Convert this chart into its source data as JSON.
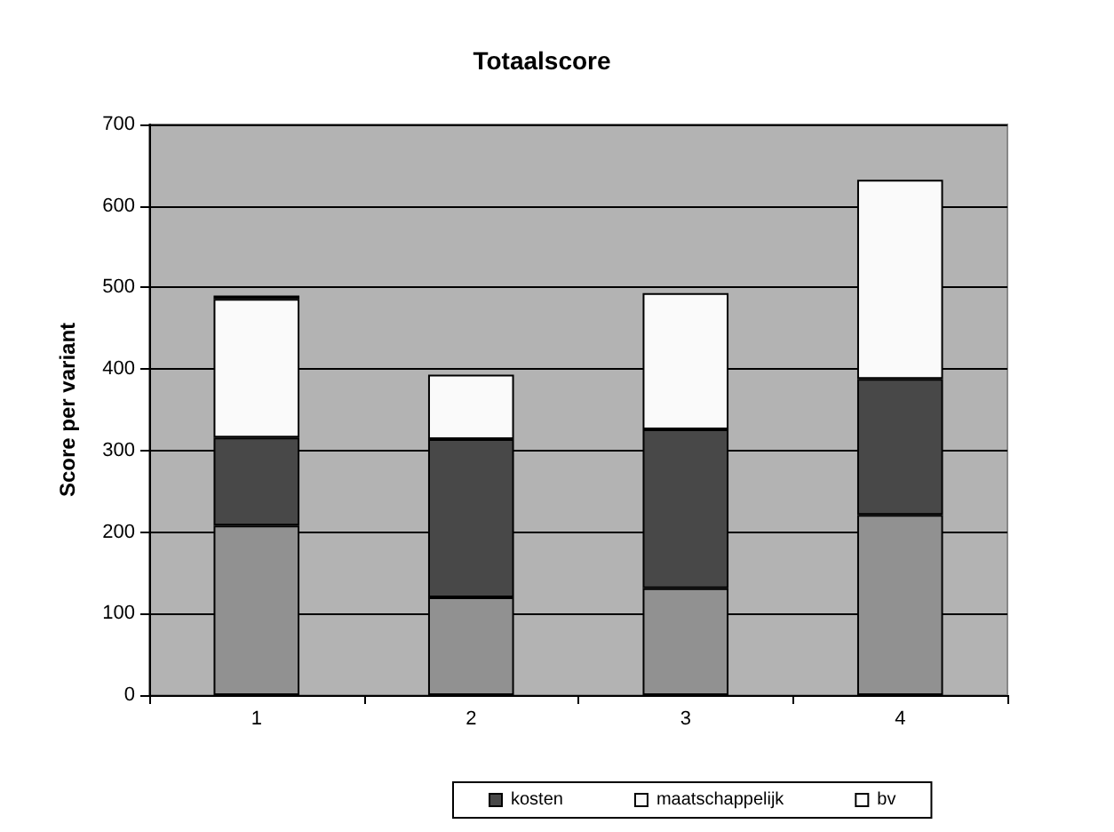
{
  "chart_data": {
    "type": "bar",
    "title": "Totaalscore",
    "ylabel": "Score per variant",
    "categories": [
      "1",
      "2",
      "3",
      "4"
    ],
    "stacked": true,
    "series": [
      {
        "color": "#919191",
        "values": [
          208,
          120,
          131,
          221
        ]
      },
      {
        "name": "kosten",
        "color": "#484848",
        "values": [
          108,
          194,
          195,
          167
        ]
      },
      {
        "name": "maatschappelijk",
        "color": "#fafafa",
        "values": [
          170,
          79,
          167,
          244
        ]
      },
      {
        "name": "bv",
        "color": "#ffffff",
        "values": [
          4,
          null,
          null,
          null
        ]
      }
    ],
    "ylim": [
      0,
      700
    ],
    "yticks": [
      0,
      100,
      200,
      300,
      400,
      500,
      600,
      700
    ],
    "grid": "y",
    "legend": "bottom"
  }
}
